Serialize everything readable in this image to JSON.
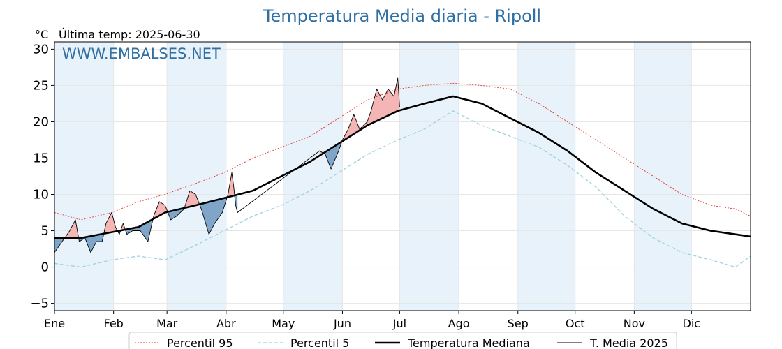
{
  "chart_data": {
    "type": "line",
    "title": "Temperatura Media diaria - Ripoll",
    "unit_label": "°C",
    "subtitle": "Última temp: 2025-06-30",
    "watermark": "WWW.EMBALSES.NET",
    "ylim": [
      -6,
      31
    ],
    "yticks": [
      -5,
      0,
      5,
      10,
      15,
      20,
      25,
      30
    ],
    "ytick_labels": [
      "−5",
      "0",
      "5",
      "10",
      "15",
      "20",
      "25",
      "30"
    ],
    "x_range_days": [
      1,
      366
    ],
    "months": [
      {
        "label": "Ene",
        "day": 1
      },
      {
        "label": "Feb",
        "day": 32
      },
      {
        "label": "Mar",
        "day": 60
      },
      {
        "label": "Abr",
        "day": 91
      },
      {
        "label": "May",
        "day": 121
      },
      {
        "label": "Jun",
        "day": 152
      },
      {
        "label": "Jul",
        "day": 182
      },
      {
        "label": "Ago",
        "day": 213
      },
      {
        "label": "Sep",
        "day": 244
      },
      {
        "label": "Oct",
        "day": 274
      },
      {
        "label": "Nov",
        "day": 305
      },
      {
        "label": "Dic",
        "day": 335
      }
    ],
    "grid": true,
    "legend_position": "bottom",
    "series": [
      {
        "name": "Percentil 95",
        "color": "#e8322f",
        "style": "dotted",
        "points": [
          [
            1,
            7.5
          ],
          [
            15,
            6.5
          ],
          [
            31,
            7.5
          ],
          [
            45,
            9.0
          ],
          [
            59,
            10.0
          ],
          [
            75,
            11.5
          ],
          [
            90,
            13.0
          ],
          [
            105,
            15.0
          ],
          [
            120,
            16.5
          ],
          [
            135,
            18.0
          ],
          [
            150,
            20.5
          ],
          [
            165,
            23.0
          ],
          [
            181,
            24.5
          ],
          [
            195,
            25.0
          ],
          [
            210,
            25.3
          ],
          [
            225,
            25.0
          ],
          [
            240,
            24.5
          ],
          [
            255,
            22.5
          ],
          [
            270,
            20.0
          ],
          [
            285,
            17.5
          ],
          [
            300,
            15.0
          ],
          [
            315,
            12.5
          ],
          [
            330,
            10.0
          ],
          [
            345,
            8.5
          ],
          [
            358,
            8.0
          ],
          [
            366,
            7.0
          ]
        ]
      },
      {
        "name": "Percentil 5",
        "color": "#9fd0e0",
        "style": "dashed",
        "points": [
          [
            1,
            0.5
          ],
          [
            15,
            0.0
          ],
          [
            31,
            1.0
          ],
          [
            45,
            1.5
          ],
          [
            59,
            1.0
          ],
          [
            75,
            3.0
          ],
          [
            90,
            5.0
          ],
          [
            105,
            7.0
          ],
          [
            120,
            8.5
          ],
          [
            135,
            10.5
          ],
          [
            150,
            13.0
          ],
          [
            165,
            15.5
          ],
          [
            181,
            17.5
          ],
          [
            195,
            19.0
          ],
          [
            210,
            21.5
          ],
          [
            225,
            19.5
          ],
          [
            240,
            18.0
          ],
          [
            255,
            16.5
          ],
          [
            270,
            14.0
          ],
          [
            285,
            11.0
          ],
          [
            300,
            7.0
          ],
          [
            315,
            4.0
          ],
          [
            330,
            2.0
          ],
          [
            345,
            1.0
          ],
          [
            358,
            0.0
          ],
          [
            366,
            1.5
          ]
        ]
      },
      {
        "name": "Temperatura Mediana",
        "color": "#000000",
        "style": "solid-thick",
        "points": [
          [
            1,
            4.0
          ],
          [
            15,
            4.0
          ],
          [
            31,
            4.8
          ],
          [
            45,
            5.5
          ],
          [
            59,
            7.5
          ],
          [
            75,
            8.5
          ],
          [
            90,
            9.5
          ],
          [
            105,
            10.5
          ],
          [
            120,
            12.5
          ],
          [
            135,
            14.5
          ],
          [
            150,
            17.0
          ],
          [
            165,
            19.5
          ],
          [
            181,
            21.5
          ],
          [
            195,
            22.5
          ],
          [
            210,
            23.5
          ],
          [
            225,
            22.5
          ],
          [
            240,
            20.5
          ],
          [
            255,
            18.5
          ],
          [
            270,
            16.0
          ],
          [
            285,
            13.0
          ],
          [
            300,
            10.5
          ],
          [
            315,
            8.0
          ],
          [
            330,
            6.0
          ],
          [
            345,
            5.0
          ],
          [
            358,
            4.5
          ],
          [
            366,
            4.2
          ]
        ]
      },
      {
        "name": "T. Media 2025",
        "color": "#000000",
        "style": "solid-thin",
        "points": [
          [
            1,
            2.0
          ],
          [
            5,
            3.5
          ],
          [
            9,
            5.0
          ],
          [
            12,
            6.5
          ],
          [
            14,
            3.5
          ],
          [
            17,
            4.0
          ],
          [
            20,
            2.0
          ],
          [
            23,
            3.5
          ],
          [
            26,
            3.5
          ],
          [
            28,
            6.0
          ],
          [
            31,
            7.5
          ],
          [
            33,
            5.5
          ],
          [
            35,
            4.5
          ],
          [
            37,
            6.0
          ],
          [
            39,
            4.5
          ],
          [
            42,
            5.0
          ],
          [
            46,
            5.0
          ],
          [
            50,
            3.5
          ],
          [
            53,
            7.0
          ],
          [
            56,
            9.0
          ],
          [
            59,
            8.5
          ],
          [
            62,
            6.5
          ],
          [
            65,
            7.0
          ],
          [
            69,
            8.0
          ],
          [
            72,
            10.5
          ],
          [
            75,
            10.0
          ],
          [
            78,
            8.0
          ],
          [
            82,
            4.5
          ],
          [
            85,
            6.0
          ],
          [
            89,
            7.5
          ],
          [
            92,
            10.0
          ],
          [
            94,
            13.0
          ],
          [
            95,
            11.0
          ],
          [
            96,
            8.5
          ],
          [
            97,
            7.5
          ],
          [
            140,
            16.0
          ],
          [
            143,
            15.5
          ],
          [
            146,
            13.5
          ],
          [
            150,
            16.0
          ],
          [
            152,
            17.5
          ],
          [
            155,
            19.0
          ],
          [
            158,
            21.0
          ],
          [
            161,
            19.0
          ],
          [
            165,
            20.0
          ],
          [
            167,
            21.5
          ],
          [
            170,
            24.5
          ],
          [
            173,
            23.0
          ],
          [
            176,
            24.5
          ],
          [
            179,
            23.5
          ],
          [
            181,
            26.0
          ],
          [
            182,
            22.0
          ]
        ]
      }
    ]
  },
  "legend": [
    {
      "label": "Percentil 95",
      "color": "#e8322f",
      "style": "dotted"
    },
    {
      "label": "Percentil 5",
      "color": "#9fd0e0",
      "style": "dashed"
    },
    {
      "label": "Temperatura Mediana",
      "color": "#000000",
      "style": "solid-thick"
    },
    {
      "label": "T. Media 2025",
      "color": "#000000",
      "style": "solid-thin"
    }
  ],
  "colors": {
    "above_fill": "#f5b5b5",
    "above_strong_fill": "#e85a5a",
    "below_fill": "#7fa6c9",
    "band_fill": "#e8f2fa",
    "grid": "#e6e6e6",
    "title": "#2f6fa3"
  }
}
